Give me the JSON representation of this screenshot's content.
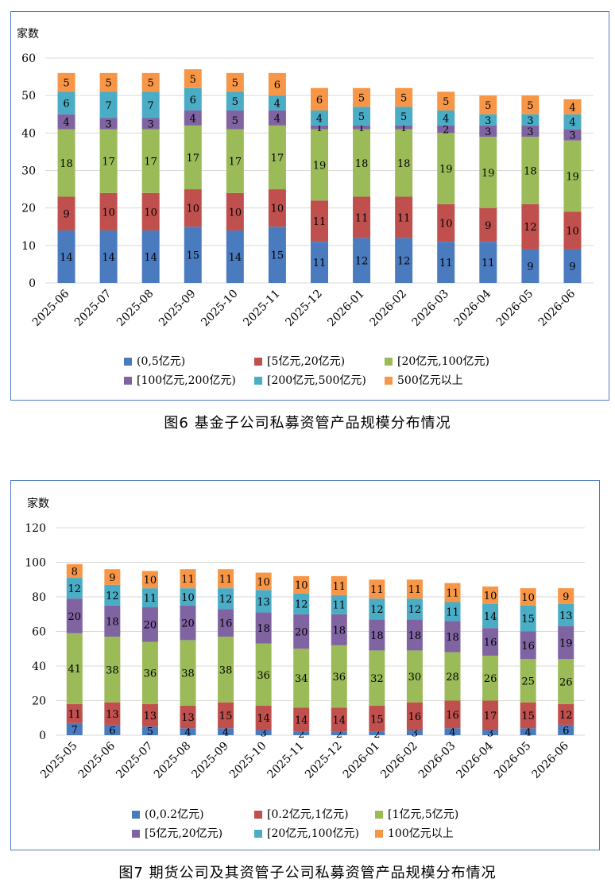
{
  "captions": {
    "fig6": "图6  基金子公司私募资管产品规模分布情况",
    "fig7": "图7  期货公司及其资管子公司私募资管产品规模分布情况"
  },
  "chart_data": [
    {
      "type": "bar",
      "stacked": true,
      "ylabel": "家数",
      "ylim": [
        0,
        60
      ],
      "yticks": [
        0,
        10,
        20,
        30,
        40,
        50,
        60
      ],
      "grid": true,
      "legend_position": "bottom",
      "categories": [
        "2025-06",
        "2025-07",
        "2025-08",
        "2025-09",
        "2025-10",
        "2025-11",
        "2025-12",
        "2026-01",
        "2026-02",
        "2026-03",
        "2026-04",
        "2026-05",
        "2026-06"
      ],
      "series": [
        {
          "name": "(0,5亿元)",
          "color": "#4a7bbf",
          "values": [
            14,
            14,
            14,
            15,
            14,
            15,
            11,
            12,
            12,
            11,
            11,
            9,
            9
          ]
        },
        {
          "name": "[5亿元,20亿元)",
          "color": "#c0504d",
          "values": [
            9,
            10,
            10,
            10,
            10,
            10,
            11,
            11,
            11,
            10,
            9,
            12,
            10
          ]
        },
        {
          "name": "[20亿元,100亿元)",
          "color": "#9bbb59",
          "values": [
            18,
            17,
            17,
            17,
            17,
            17,
            19,
            18,
            18,
            19,
            19,
            18,
            19
          ]
        },
        {
          "name": "[100亿元,200亿元)",
          "color": "#8064a2",
          "values": [
            4,
            3,
            3,
            4,
            5,
            4,
            1,
            1,
            1,
            2,
            3,
            3,
            3
          ]
        },
        {
          "name": "[200亿元,500亿元)",
          "color": "#4bacc6",
          "values": [
            6,
            7,
            7,
            6,
            5,
            4,
            4,
            5,
            5,
            4,
            3,
            3,
            4
          ]
        },
        {
          "name": "500亿元以上",
          "color": "#f79646",
          "values": [
            5,
            5,
            5,
            5,
            5,
            6,
            6,
            5,
            5,
            5,
            5,
            5,
            4
          ]
        }
      ]
    },
    {
      "type": "bar",
      "stacked": true,
      "ylabel": "家数",
      "ylim": [
        0,
        120
      ],
      "yticks": [
        0,
        20,
        40,
        60,
        80,
        100,
        120
      ],
      "grid": true,
      "legend_position": "bottom",
      "categories": [
        "2025-05",
        "2025-06",
        "2025-07",
        "2025-08",
        "2025-09",
        "2025-10",
        "2025-11",
        "2025-12",
        "2026-01",
        "2026-02",
        "2026-03",
        "2026-04",
        "2026-05",
        "2026-06"
      ],
      "series": [
        {
          "name": "(0,0.2亿元)",
          "color": "#4a7bbf",
          "values": [
            7,
            6,
            5,
            4,
            4,
            3,
            2,
            2,
            2,
            3,
            4,
            3,
            4,
            6
          ]
        },
        {
          "name": "[0.2亿元,1亿元)",
          "color": "#c0504d",
          "values": [
            11,
            13,
            13,
            13,
            15,
            14,
            14,
            14,
            15,
            16,
            16,
            17,
            15,
            12
          ]
        },
        {
          "name": "[1亿元,5亿元)",
          "color": "#9bbb59",
          "values": [
            41,
            38,
            36,
            38,
            38,
            36,
            34,
            36,
            32,
            30,
            28,
            26,
            25,
            26
          ]
        },
        {
          "name": "[5亿元,20亿元)",
          "color": "#8064a2",
          "values": [
            20,
            18,
            20,
            20,
            16,
            18,
            20,
            18,
            18,
            18,
            18,
            16,
            16,
            19
          ]
        },
        {
          "name": "[20亿元,100亿元)",
          "color": "#4bacc6",
          "values": [
            12,
            12,
            11,
            10,
            12,
            13,
            12,
            11,
            12,
            12,
            11,
            14,
            15,
            13
          ]
        },
        {
          "name": "100亿元以上",
          "color": "#f79646",
          "values": [
            8,
            9,
            10,
            11,
            11,
            10,
            10,
            11,
            11,
            11,
            11,
            10,
            10,
            9
          ]
        }
      ]
    }
  ]
}
